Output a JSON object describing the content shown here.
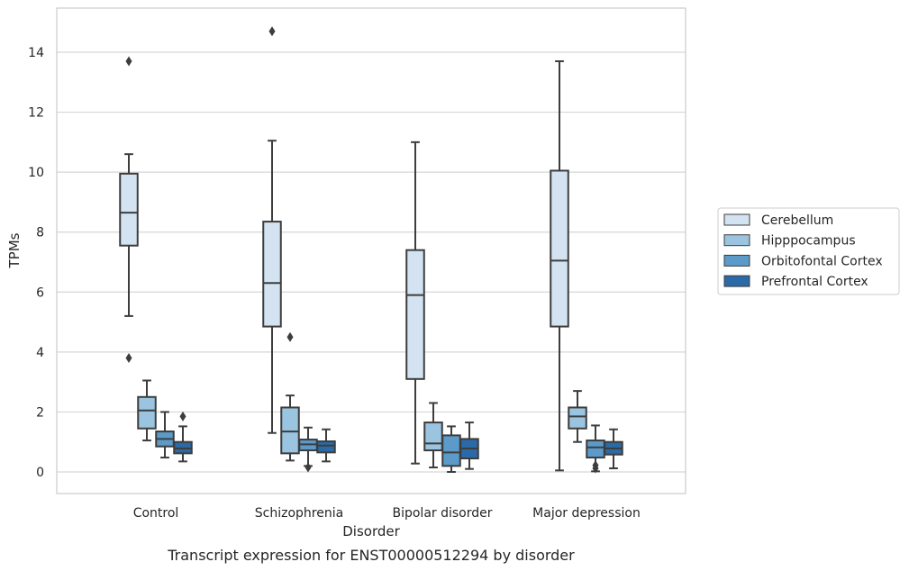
{
  "chart_data": {
    "type": "box",
    "caption": "Transcript expression for ENST00000512294 by disorder",
    "xlabel": "Disorder",
    "ylabel": "TPMs",
    "ylim": [
      -0.6,
      15.5
    ],
    "yticks": [
      0,
      2,
      4,
      6,
      8,
      10,
      12,
      14
    ],
    "grid": "horizontal",
    "legend_position": "right",
    "categories": [
      "Control",
      "Schizophrenia",
      "Bipolar disorder",
      "Major depression"
    ],
    "series": [
      {
        "name": "Cerebellum",
        "color": "#d3e3f2",
        "boxes": [
          {
            "whisker_low": 5.2,
            "q1": 7.55,
            "median": 8.65,
            "q3": 9.95,
            "whisker_high": 10.6,
            "outliers": [
              13.7,
              3.8
            ]
          },
          {
            "whisker_low": 1.3,
            "q1": 4.85,
            "median": 6.3,
            "q3": 8.35,
            "whisker_high": 11.05,
            "outliers": [
              14.7
            ]
          },
          {
            "whisker_low": 0.28,
            "q1": 3.1,
            "median": 5.9,
            "q3": 7.4,
            "whisker_high": 11.0,
            "outliers": []
          },
          {
            "whisker_low": 0.05,
            "q1": 4.85,
            "median": 7.05,
            "q3": 10.05,
            "whisker_high": 13.7,
            "outliers": []
          }
        ]
      },
      {
        "name": "Hipppocampus",
        "color": "#9ac4e0",
        "boxes": [
          {
            "whisker_low": 1.05,
            "q1": 1.45,
            "median": 2.05,
            "q3": 2.5,
            "whisker_high": 3.05,
            "outliers": []
          },
          {
            "whisker_low": 0.38,
            "q1": 0.62,
            "median": 1.35,
            "q3": 2.15,
            "whisker_high": 2.55,
            "outliers": [
              4.5
            ]
          },
          {
            "whisker_low": 0.15,
            "q1": 0.72,
            "median": 0.95,
            "q3": 1.65,
            "whisker_high": 2.3,
            "outliers": []
          },
          {
            "whisker_low": 1.0,
            "q1": 1.45,
            "median": 1.85,
            "q3": 2.15,
            "whisker_high": 2.7,
            "outliers": []
          }
        ]
      },
      {
        "name": "Orbitofontal Cortex",
        "color": "#5b9ac9",
        "boxes": [
          {
            "whisker_low": 0.48,
            "q1": 0.85,
            "median": 1.1,
            "q3": 1.35,
            "whisker_high": 2.0,
            "outliers": []
          },
          {
            "whisker_low": 0.2,
            "q1": 0.72,
            "median": 0.92,
            "q3": 1.08,
            "whisker_high": 1.48,
            "outliers": [
              0.15
            ]
          },
          {
            "whisker_low": 0.0,
            "q1": 0.2,
            "median": 0.65,
            "q3": 1.22,
            "whisker_high": 1.52,
            "outliers": []
          },
          {
            "whisker_low": 0.02,
            "q1": 0.48,
            "median": 0.82,
            "q3": 1.05,
            "whisker_high": 1.55,
            "outliers": [
              0.22,
              0.12
            ]
          }
        ]
      },
      {
        "name": "Prefrontal Cortex",
        "color": "#2a6aa7",
        "boxes": [
          {
            "whisker_low": 0.35,
            "q1": 0.62,
            "median": 0.78,
            "q3": 1.0,
            "whisker_high": 1.52,
            "outliers": [
              1.85
            ]
          },
          {
            "whisker_low": 0.35,
            "q1": 0.65,
            "median": 0.88,
            "q3": 1.02,
            "whisker_high": 1.42,
            "outliers": []
          },
          {
            "whisker_low": 0.1,
            "q1": 0.45,
            "median": 0.78,
            "q3": 1.1,
            "whisker_high": 1.65,
            "outliers": []
          },
          {
            "whisker_low": 0.12,
            "q1": 0.58,
            "median": 0.78,
            "q3": 1.0,
            "whisker_high": 1.42,
            "outliers": []
          }
        ]
      }
    ]
  }
}
